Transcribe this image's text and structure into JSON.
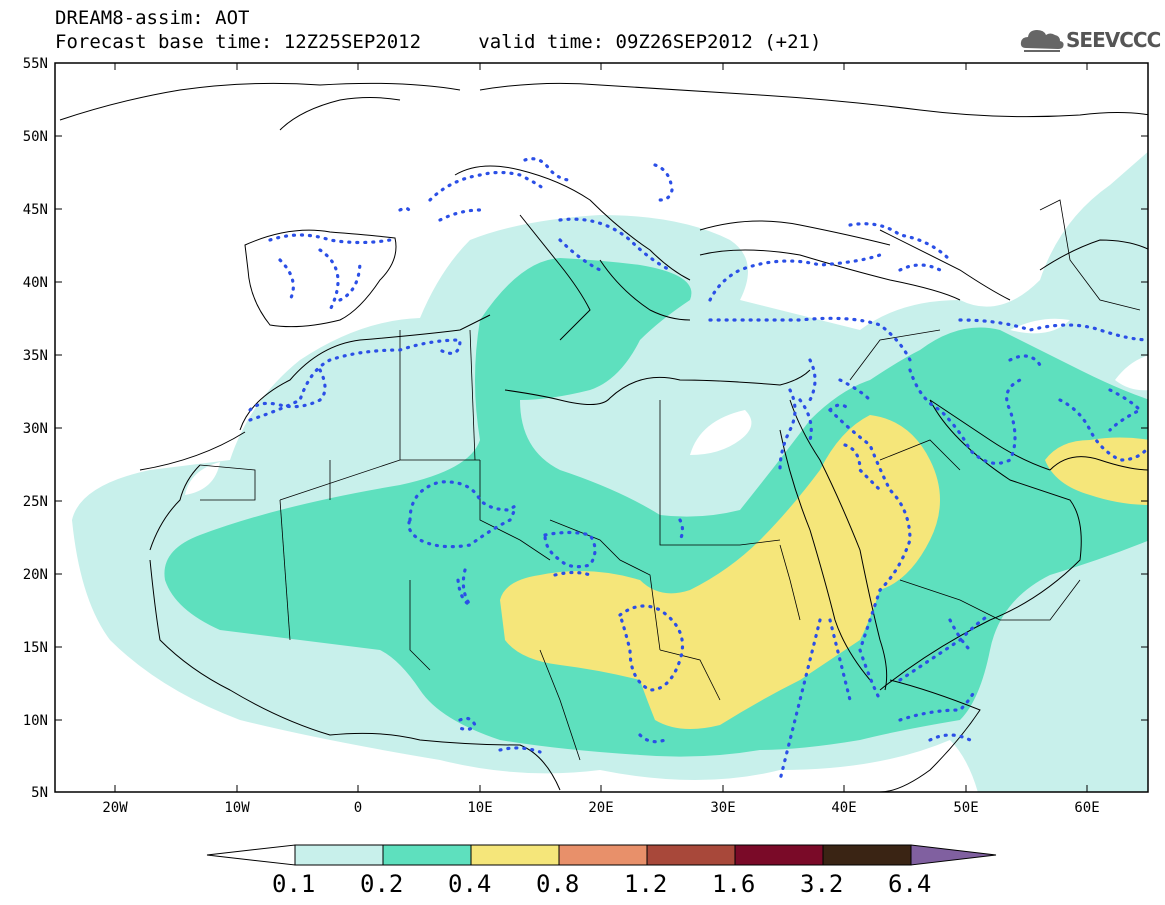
{
  "title": {
    "line1": "DREAM8-assim: AOT",
    "base_time": "Forecast base time: 12Z25SEP2012",
    "valid_time": "valid time: 09Z26SEP2012 (+21)"
  },
  "logo": {
    "text": "SEEVCCC",
    "icon": "cloud-icon"
  },
  "axes": {
    "lat_ticks": [
      "55N",
      "50N",
      "45N",
      "40N",
      "35N",
      "30N",
      "25N",
      "20N",
      "15N",
      "10N",
      "5N"
    ],
    "lon_ticks": [
      "20W",
      "10W",
      "0",
      "10E",
      "20E",
      "30E",
      "40E",
      "50E",
      "60E"
    ]
  },
  "colorbar": {
    "labels": [
      "0.1",
      "0.2",
      "0.4",
      "0.8",
      "1.2",
      "1.6",
      "3.2",
      "6.4"
    ],
    "colors": [
      "#ffffff",
      "#c8f0eb",
      "#5ee0be",
      "#f5e67a",
      "#e8906a",
      "#a8483a",
      "#7a0a28",
      "#3a2414",
      "#8060a0"
    ]
  },
  "colors": {
    "contour": "#2b4fe6",
    "coast": "#000000"
  }
}
